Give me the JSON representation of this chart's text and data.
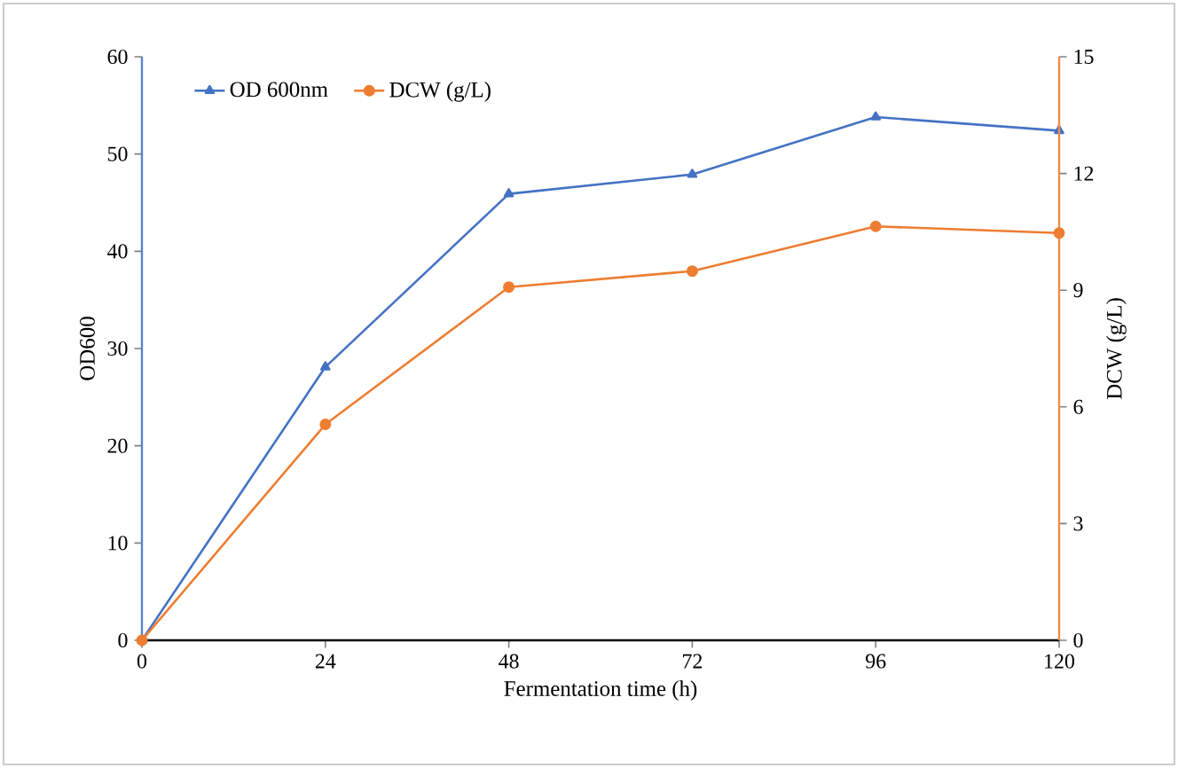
{
  "chart_data": {
    "type": "line",
    "xlabel": "Fermentation time (h)",
    "ylabel": "OD600",
    "y2label": "DCW (g/L)",
    "x": [
      0,
      24,
      48,
      72,
      96,
      120
    ],
    "series": [
      {
        "name": "OD 600nm",
        "color": "#4472c4",
        "marker": "triangle",
        "values": [
          0,
          28.1,
          45.9,
          47.9,
          53.8,
          52.4
        ]
      },
      {
        "name": "DCW (g/L)",
        "color": "#ed7d31",
        "marker": "circle",
        "axis": "y2",
        "values": [
          0,
          5.55,
          9.08,
          9.49,
          10.64,
          10.47
        ]
      }
    ],
    "xlim": [
      0,
      120
    ],
    "xticks": [
      0,
      24,
      48,
      72,
      96,
      120
    ],
    "ylim": [
      0,
      60
    ],
    "yticks": [
      0,
      10,
      20,
      30,
      40,
      50,
      60
    ],
    "y2lim": [
      0,
      15
    ],
    "y2ticks": [
      0,
      3,
      6,
      9,
      12,
      15
    ],
    "grid": false,
    "legend": "top left"
  }
}
